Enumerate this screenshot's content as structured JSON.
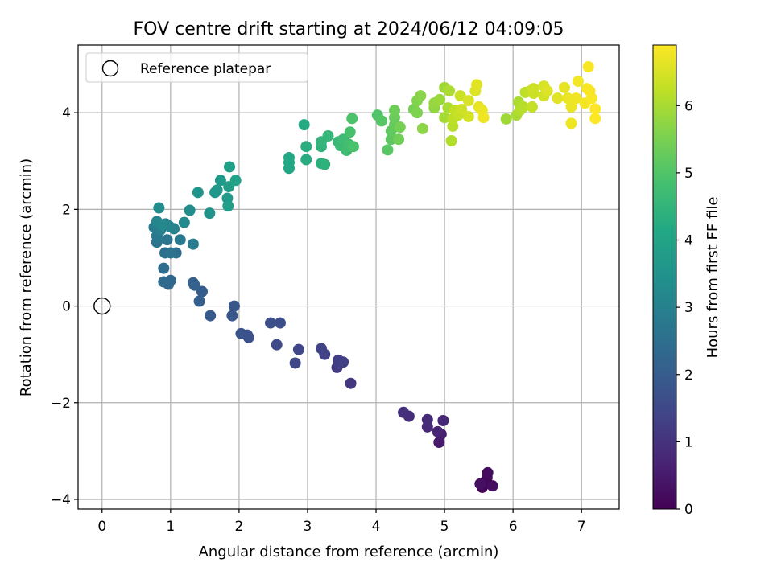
{
  "chart_data": {
    "type": "scatter",
    "title": "FOV centre drift starting at 2024/06/12 04:09:05",
    "xlabel": "Angular distance from reference (arcmin)",
    "ylabel": "Rotation from reference (arcmin)",
    "xlim": [
      -0.35,
      7.55
    ],
    "ylim": [
      -4.2,
      5.4
    ],
    "xticks": [
      0,
      1,
      2,
      3,
      4,
      5,
      6,
      7
    ],
    "yticks": [
      -4,
      -2,
      0,
      2,
      4
    ],
    "xtick_labels": [
      "0",
      "1",
      "2",
      "3",
      "4",
      "5",
      "6",
      "7"
    ],
    "ytick_labels": [
      "−4",
      "−2",
      "0",
      "2",
      "4"
    ],
    "grid": true,
    "legend": {
      "position": "top-left",
      "entries": [
        "Reference platepar"
      ]
    },
    "reference_point": {
      "x": 0,
      "y": 0
    },
    "colorbar": {
      "label": "Hours from first FF file",
      "min": 0,
      "max": 6.9,
      "ticks": [
        0,
        1,
        2,
        3,
        4,
        5,
        6
      ],
      "tick_labels": [
        "0",
        "1",
        "2",
        "3",
        "4",
        "5",
        "6"
      ],
      "colormap": "viridis"
    },
    "points": [
      {
        "x": 5.55,
        "y": -3.75,
        "h": 0.05
      },
      {
        "x": 5.58,
        "y": -3.65,
        "h": 0.1
      },
      {
        "x": 5.62,
        "y": -3.55,
        "h": 0.15
      },
      {
        "x": 5.63,
        "y": -3.45,
        "h": 0.2
      },
      {
        "x": 5.7,
        "y": -3.72,
        "h": 0.25
      },
      {
        "x": 5.52,
        "y": -3.68,
        "h": 0.3
      },
      {
        "x": 4.92,
        "y": -2.82,
        "h": 0.5
      },
      {
        "x": 4.95,
        "y": -2.65,
        "h": 0.6
      },
      {
        "x": 4.9,
        "y": -2.6,
        "h": 0.7
      },
      {
        "x": 4.98,
        "y": -2.37,
        "h": 0.75
      },
      {
        "x": 4.75,
        "y": -2.5,
        "h": 0.8
      },
      {
        "x": 4.75,
        "y": -2.35,
        "h": 0.85
      },
      {
        "x": 4.48,
        "y": -2.28,
        "h": 0.9
      },
      {
        "x": 4.4,
        "y": -2.2,
        "h": 0.95
      },
      {
        "x": 3.63,
        "y": -1.6,
        "h": 1.1
      },
      {
        "x": 3.43,
        "y": -1.27,
        "h": 1.2
      },
      {
        "x": 3.45,
        "y": -1.12,
        "h": 1.25
      },
      {
        "x": 3.52,
        "y": -1.16,
        "h": 1.3
      },
      {
        "x": 3.25,
        "y": -1.0,
        "h": 1.35
      },
      {
        "x": 3.2,
        "y": -0.88,
        "h": 1.4
      },
      {
        "x": 2.87,
        "y": -0.9,
        "h": 1.45
      },
      {
        "x": 2.82,
        "y": -1.18,
        "h": 1.5
      },
      {
        "x": 2.55,
        "y": -0.8,
        "h": 1.55
      },
      {
        "x": 2.6,
        "y": -0.35,
        "h": 1.6
      },
      {
        "x": 2.46,
        "y": -0.35,
        "h": 1.65
      },
      {
        "x": 2.14,
        "y": -0.65,
        "h": 1.7
      },
      {
        "x": 2.12,
        "y": -0.6,
        "h": 1.75
      },
      {
        "x": 2.03,
        "y": -0.57,
        "h": 1.8
      },
      {
        "x": 1.93,
        "y": 0.0,
        "h": 1.85
      },
      {
        "x": 1.9,
        "y": -0.2,
        "h": 1.9
      },
      {
        "x": 1.58,
        "y": -0.2,
        "h": 1.95
      },
      {
        "x": 1.46,
        "y": 0.3,
        "h": 2.0
      },
      {
        "x": 1.42,
        "y": 0.1,
        "h": 2.05
      },
      {
        "x": 1.33,
        "y": 0.48,
        "h": 2.1
      },
      {
        "x": 1.35,
        "y": 0.43,
        "h": 2.15
      },
      {
        "x": 1.0,
        "y": 0.53,
        "h": 2.3
      },
      {
        "x": 0.97,
        "y": 0.45,
        "h": 2.35
      },
      {
        "x": 0.9,
        "y": 0.5,
        "h": 2.4
      },
      {
        "x": 0.9,
        "y": 0.78,
        "h": 2.45
      },
      {
        "x": 1.08,
        "y": 1.1,
        "h": 2.5
      },
      {
        "x": 0.92,
        "y": 1.1,
        "h": 2.55
      },
      {
        "x": 1.0,
        "y": 1.1,
        "h": 2.6
      },
      {
        "x": 0.8,
        "y": 1.32,
        "h": 2.65
      },
      {
        "x": 0.95,
        "y": 1.37,
        "h": 2.7
      },
      {
        "x": 1.14,
        "y": 1.37,
        "h": 2.75
      },
      {
        "x": 0.8,
        "y": 1.45,
        "h": 2.8
      },
      {
        "x": 1.33,
        "y": 1.28,
        "h": 2.85
      },
      {
        "x": 0.76,
        "y": 1.63,
        "h": 2.9
      },
      {
        "x": 0.85,
        "y": 1.57,
        "h": 2.95
      },
      {
        "x": 0.93,
        "y": 1.7,
        "h": 3.0
      },
      {
        "x": 1.05,
        "y": 1.6,
        "h": 3.05
      },
      {
        "x": 0.98,
        "y": 1.65,
        "h": 3.1
      },
      {
        "x": 0.8,
        "y": 1.75,
        "h": 3.15
      },
      {
        "x": 0.88,
        "y": 1.68,
        "h": 3.2
      },
      {
        "x": 1.2,
        "y": 1.73,
        "h": 3.25
      },
      {
        "x": 0.83,
        "y": 2.03,
        "h": 3.3
      },
      {
        "x": 1.28,
        "y": 1.98,
        "h": 3.35
      },
      {
        "x": 1.57,
        "y": 1.92,
        "h": 3.5
      },
      {
        "x": 1.4,
        "y": 2.35,
        "h": 3.55
      },
      {
        "x": 1.65,
        "y": 2.35,
        "h": 3.6
      },
      {
        "x": 1.68,
        "y": 2.4,
        "h": 3.65
      },
      {
        "x": 1.73,
        "y": 2.6,
        "h": 3.7
      },
      {
        "x": 1.83,
        "y": 2.23,
        "h": 3.75
      },
      {
        "x": 1.84,
        "y": 2.07,
        "h": 3.8
      },
      {
        "x": 1.85,
        "y": 2.47,
        "h": 3.85
      },
      {
        "x": 1.86,
        "y": 2.88,
        "h": 3.9
      },
      {
        "x": 1.95,
        "y": 2.6,
        "h": 3.95
      },
      {
        "x": 2.73,
        "y": 2.85,
        "h": 4.05
      },
      {
        "x": 2.73,
        "y": 2.97,
        "h": 4.1
      },
      {
        "x": 2.73,
        "y": 3.07,
        "h": 4.15
      },
      {
        "x": 2.95,
        "y": 3.75,
        "h": 4.2
      },
      {
        "x": 2.98,
        "y": 3.03,
        "h": 4.25
      },
      {
        "x": 2.98,
        "y": 3.3,
        "h": 4.3
      },
      {
        "x": 3.2,
        "y": 2.95,
        "h": 4.35
      },
      {
        "x": 3.25,
        "y": 2.93,
        "h": 4.4
      },
      {
        "x": 3.2,
        "y": 3.3,
        "h": 4.45
      },
      {
        "x": 3.2,
        "y": 3.4,
        "h": 4.5
      },
      {
        "x": 3.3,
        "y": 3.52,
        "h": 4.55
      },
      {
        "x": 3.45,
        "y": 3.4,
        "h": 4.6
      },
      {
        "x": 3.48,
        "y": 3.32,
        "h": 4.65
      },
      {
        "x": 3.52,
        "y": 3.45,
        "h": 4.7
      },
      {
        "x": 3.57,
        "y": 3.22,
        "h": 4.75
      },
      {
        "x": 3.6,
        "y": 3.35,
        "h": 4.8
      },
      {
        "x": 3.62,
        "y": 3.6,
        "h": 4.85
      },
      {
        "x": 3.67,
        "y": 3.3,
        "h": 4.9
      },
      {
        "x": 3.65,
        "y": 3.88,
        "h": 4.95
      },
      {
        "x": 4.02,
        "y": 3.95,
        "h": 5.0
      },
      {
        "x": 4.08,
        "y": 3.83,
        "h": 5.05
      },
      {
        "x": 4.17,
        "y": 3.23,
        "h": 5.1
      },
      {
        "x": 4.22,
        "y": 3.45,
        "h": 5.15
      },
      {
        "x": 4.22,
        "y": 3.62,
        "h": 5.2
      },
      {
        "x": 4.27,
        "y": 3.75,
        "h": 5.25
      },
      {
        "x": 4.27,
        "y": 3.9,
        "h": 5.3
      },
      {
        "x": 4.27,
        "y": 4.05,
        "h": 5.35
      },
      {
        "x": 4.33,
        "y": 3.45,
        "h": 5.4
      },
      {
        "x": 4.35,
        "y": 3.7,
        "h": 5.45
      },
      {
        "x": 4.55,
        "y": 4.07,
        "h": 5.5
      },
      {
        "x": 4.6,
        "y": 4.0,
        "h": 5.55
      },
      {
        "x": 4.6,
        "y": 4.25,
        "h": 5.6
      },
      {
        "x": 4.65,
        "y": 4.35,
        "h": 5.65
      },
      {
        "x": 4.68,
        "y": 3.67,
        "h": 5.7
      },
      {
        "x": 4.85,
        "y": 4.1,
        "h": 5.75
      },
      {
        "x": 4.85,
        "y": 4.2,
        "h": 5.8
      },
      {
        "x": 4.93,
        "y": 4.27,
        "h": 5.85
      },
      {
        "x": 5.0,
        "y": 4.52,
        "h": 5.9
      },
      {
        "x": 5.0,
        "y": 3.9,
        "h": 5.95
      },
      {
        "x": 5.05,
        "y": 4.1,
        "h": 6.0
      },
      {
        "x": 5.07,
        "y": 4.45,
        "h": 6.05
      },
      {
        "x": 5.1,
        "y": 3.42,
        "h": 6.1
      },
      {
        "x": 5.12,
        "y": 3.72,
        "h": 6.15
      },
      {
        "x": 5.12,
        "y": 3.87,
        "h": 6.2
      },
      {
        "x": 5.15,
        "y": 4.05,
        "h": 6.25
      },
      {
        "x": 5.2,
        "y": 3.95,
        "h": 6.3
      },
      {
        "x": 5.23,
        "y": 4.35,
        "h": 6.35
      },
      {
        "x": 5.25,
        "y": 4.07,
        "h": 6.4
      },
      {
        "x": 5.35,
        "y": 3.92,
        "h": 6.45
      },
      {
        "x": 5.35,
        "y": 4.25,
        "h": 6.5
      },
      {
        "x": 5.45,
        "y": 4.45,
        "h": 6.55
      },
      {
        "x": 5.47,
        "y": 4.58,
        "h": 6.6
      },
      {
        "x": 5.5,
        "y": 4.12,
        "h": 6.65
      },
      {
        "x": 5.55,
        "y": 4.05,
        "h": 6.7
      },
      {
        "x": 5.57,
        "y": 3.9,
        "h": 6.75
      },
      {
        "x": 5.9,
        "y": 3.87,
        "h": 5.9
      },
      {
        "x": 6.05,
        "y": 3.95,
        "h": 6.0
      },
      {
        "x": 6.08,
        "y": 4.22,
        "h": 6.05
      },
      {
        "x": 6.1,
        "y": 4.05,
        "h": 6.1
      },
      {
        "x": 6.15,
        "y": 4.12,
        "h": 6.15
      },
      {
        "x": 6.18,
        "y": 4.42,
        "h": 6.2
      },
      {
        "x": 6.25,
        "y": 4.45,
        "h": 6.25
      },
      {
        "x": 6.28,
        "y": 4.12,
        "h": 6.3
      },
      {
        "x": 6.3,
        "y": 4.4,
        "h": 6.35
      },
      {
        "x": 6.3,
        "y": 4.5,
        "h": 6.4
      },
      {
        "x": 6.45,
        "y": 4.35,
        "h": 6.45
      },
      {
        "x": 6.45,
        "y": 4.55,
        "h": 6.5
      },
      {
        "x": 6.5,
        "y": 4.45,
        "h": 6.55
      },
      {
        "x": 6.65,
        "y": 4.3,
        "h": 6.6
      },
      {
        "x": 6.75,
        "y": 4.52,
        "h": 6.65
      },
      {
        "x": 6.8,
        "y": 4.3,
        "h": 6.7
      },
      {
        "x": 6.85,
        "y": 4.12,
        "h": 6.72
      },
      {
        "x": 6.85,
        "y": 3.78,
        "h": 6.74
      },
      {
        "x": 6.92,
        "y": 4.3,
        "h": 6.76
      },
      {
        "x": 6.95,
        "y": 4.65,
        "h": 6.78
      },
      {
        "x": 7.05,
        "y": 4.2,
        "h": 6.8
      },
      {
        "x": 7.08,
        "y": 4.5,
        "h": 6.82
      },
      {
        "x": 7.1,
        "y": 4.95,
        "h": 6.84
      },
      {
        "x": 7.12,
        "y": 4.45,
        "h": 6.85
      },
      {
        "x": 7.15,
        "y": 4.3,
        "h": 6.86
      },
      {
        "x": 7.2,
        "y": 3.88,
        "h": 6.88
      },
      {
        "x": 7.2,
        "y": 4.08,
        "h": 6.9
      }
    ]
  }
}
